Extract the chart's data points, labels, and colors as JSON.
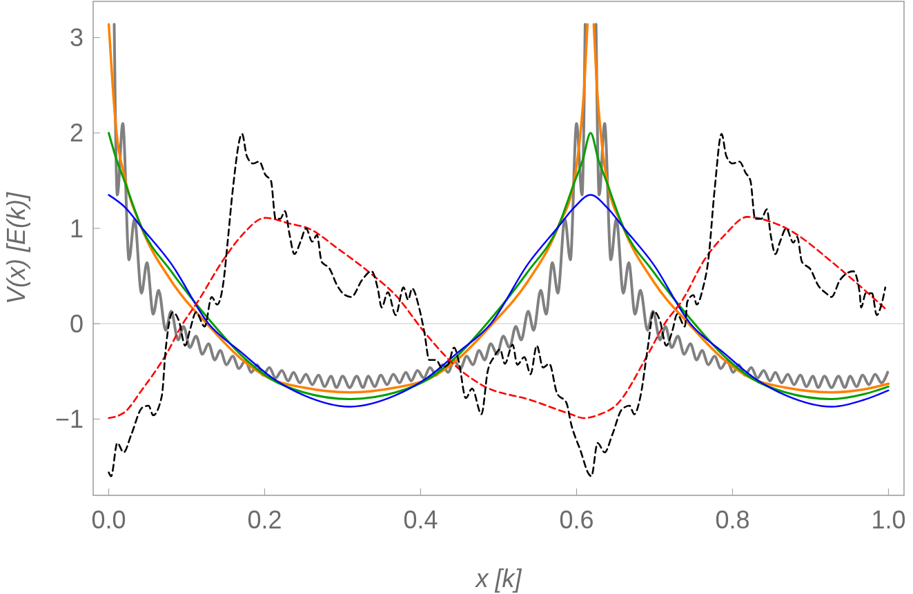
{
  "chart_data": {
    "type": "line",
    "xlabel": "x [k]",
    "ylabel": "V(x) [E(k)]",
    "xlim": [
      -0.02,
      1.02
    ],
    "ylim": [
      -1.8,
      3.38
    ],
    "xticks": [
      {
        "value": 0,
        "label": "0.0"
      },
      {
        "value": 0.2,
        "label": "0.2"
      },
      {
        "value": 0.4,
        "label": "0.4"
      },
      {
        "value": 0.6,
        "label": "0.6"
      },
      {
        "value": 0.8,
        "label": "0.8"
      },
      {
        "value": 1,
        "label": "1.0"
      }
    ],
    "yticks": [
      {
        "value": -1,
        "label": "−1"
      },
      0,
      1,
      2,
      3
    ],
    "grid": false,
    "ref_lines": [
      {
        "axis": "y",
        "value": 0,
        "color": "#d9d9d9"
      }
    ],
    "series": [
      {
        "color": "#808080",
        "x": [
          0.007,
          0.011,
          0.018,
          0.026,
          0.033,
          0.042,
          0.049,
          0.057,
          0.064,
          0.073,
          0.08,
          0.089,
          0.096,
          0.104,
          0.112,
          0.12,
          0.128,
          0.136,
          0.143,
          0.151,
          0.159,
          0.167,
          0.175,
          0.183,
          0.19,
          0.198,
          0.206,
          0.214,
          0.222,
          0.23,
          0.237,
          0.245,
          0.253,
          0.261,
          0.269,
          0.277,
          0.285,
          0.292,
          0.3,
          0.309,
          0.318,
          0.326,
          0.333,
          0.341,
          0.349,
          0.357,
          0.365,
          0.373,
          0.381,
          0.388,
          0.396,
          0.404,
          0.412,
          0.42,
          0.428,
          0.435,
          0.443,
          0.451,
          0.459,
          0.467,
          0.475,
          0.482,
          0.49,
          0.498,
          0.506,
          0.514,
          0.522,
          0.529,
          0.538,
          0.545,
          0.554,
          0.561,
          0.569,
          0.576,
          0.585,
          0.592,
          0.6,
          0.607,
          0.611,
          0.618,
          0.625,
          0.629,
          0.636,
          0.644,
          0.651,
          0.66,
          0.667,
          0.675,
          0.682,
          0.691,
          0.698,
          0.707,
          0.714,
          0.722,
          0.73,
          0.738,
          0.746,
          0.754,
          0.761,
          0.769,
          0.777,
          0.785,
          0.793,
          0.801,
          0.808,
          0.816,
          0.824,
          0.832,
          0.84,
          0.848,
          0.855,
          0.863,
          0.871,
          0.879,
          0.887,
          0.895,
          0.903,
          0.91,
          0.918,
          0.927,
          0.936,
          0.944,
          0.951,
          0.959,
          0.967,
          0.975,
          0.983,
          0.991,
          0.999
        ],
        "values": [
          3.14,
          1.35,
          2.1,
          0.67,
          1.1,
          0.32,
          0.64,
          0.1,
          0.35,
          -0.07,
          0.13,
          -0.17,
          -0.03,
          -0.25,
          -0.13,
          -0.32,
          -0.21,
          -0.38,
          -0.28,
          -0.43,
          -0.34,
          -0.47,
          -0.39,
          -0.51,
          -0.43,
          -0.54,
          -0.46,
          -0.57,
          -0.49,
          -0.6,
          -0.51,
          -0.62,
          -0.53,
          -0.64,
          -0.54,
          -0.66,
          -0.55,
          -0.67,
          -0.55,
          -0.67,
          -0.55,
          -0.67,
          -0.55,
          -0.66,
          -0.54,
          -0.64,
          -0.53,
          -0.62,
          -0.51,
          -0.6,
          -0.49,
          -0.57,
          -0.46,
          -0.54,
          -0.43,
          -0.51,
          -0.39,
          -0.47,
          -0.34,
          -0.43,
          -0.28,
          -0.38,
          -0.21,
          -0.32,
          -0.13,
          -0.25,
          -0.03,
          -0.17,
          0.13,
          -0.07,
          0.35,
          0.1,
          0.64,
          0.32,
          1.1,
          0.67,
          2.1,
          1.35,
          3.14,
          null,
          3.14,
          1.35,
          2.1,
          0.67,
          1.1,
          0.32,
          0.64,
          0.1,
          0.35,
          -0.07,
          0.13,
          -0.17,
          -0.03,
          -0.25,
          -0.13,
          -0.32,
          -0.21,
          -0.38,
          -0.28,
          -0.43,
          -0.34,
          -0.47,
          -0.39,
          -0.51,
          -0.43,
          -0.54,
          -0.46,
          -0.57,
          -0.49,
          -0.6,
          -0.51,
          -0.62,
          -0.53,
          -0.64,
          -0.54,
          -0.66,
          -0.55,
          -0.67,
          -0.55,
          -0.67,
          -0.55,
          -0.67,
          -0.55,
          -0.66,
          -0.54,
          -0.64,
          -0.53,
          -0.62,
          -0.51
        ]
      },
      {
        "color": "#ff8000",
        "x": [
          0,
          0.005,
          0.01,
          0.02,
          0.042,
          0.08,
          0.128,
          0.17,
          0.208,
          0.25,
          0.309,
          0.368,
          0.41,
          0.448,
          0.49,
          0.538,
          0.576,
          0.598,
          0.605,
          0.61,
          0.614,
          0.618,
          0.622,
          0.626,
          0.631,
          0.638,
          0.66,
          0.698,
          0.746,
          0.788,
          0.826,
          0.868,
          0.927,
          0.968,
          1.0
        ],
        "values": [
          3.14,
          2.5,
          2.0,
          1.55,
          1.01,
          0.45,
          -0.02,
          -0.37,
          -0.58,
          -0.67,
          -0.72,
          -0.67,
          -0.58,
          -0.37,
          -0.02,
          0.45,
          1.01,
          1.55,
          2.0,
          2.5,
          3.14,
          null,
          3.14,
          2.5,
          2.0,
          1.55,
          1.01,
          0.45,
          -0.02,
          -0.37,
          -0.58,
          -0.67,
          -0.72,
          -0.69,
          -0.63
        ]
      },
      {
        "color": "#00a000",
        "x": [
          0,
          0.01,
          0.02,
          0.042,
          0.08,
          0.128,
          0.17,
          0.208,
          0.25,
          0.309,
          0.368,
          0.41,
          0.448,
          0.49,
          0.538,
          0.576,
          0.598,
          0.608,
          0.618,
          0.628,
          0.638,
          0.66,
          0.698,
          0.746,
          0.788,
          0.826,
          0.868,
          0.927,
          0.968,
          1.0
        ],
        "values": [
          2.0,
          1.72,
          1.5,
          1.01,
          0.55,
          0.05,
          -0.33,
          -0.58,
          -0.72,
          -0.79,
          -0.72,
          -0.58,
          -0.33,
          0.05,
          0.55,
          1.01,
          1.5,
          1.72,
          2.0,
          1.72,
          1.5,
          1.01,
          0.55,
          0.05,
          -0.33,
          -0.58,
          -0.72,
          -0.79,
          -0.74,
          -0.66
        ]
      },
      {
        "color": "#0000ff",
        "x": [
          0,
          0.021,
          0.042,
          0.08,
          0.128,
          0.17,
          0.21,
          0.25,
          0.309,
          0.368,
          0.408,
          0.448,
          0.49,
          0.538,
          0.576,
          0.597,
          0.618,
          0.639,
          0.66,
          0.698,
          0.746,
          0.788,
          0.828,
          0.868,
          0.927,
          0.968,
          1.0
        ],
        "values": [
          1.35,
          1.22,
          1.01,
          0.63,
          0,
          -0.3,
          -0.57,
          -0.75,
          -0.87,
          -0.75,
          -0.57,
          -0.3,
          0,
          0.63,
          1.01,
          1.22,
          1.35,
          1.22,
          1.01,
          0.63,
          0,
          -0.3,
          -0.57,
          -0.75,
          -0.87,
          -0.8,
          -0.7
        ]
      },
      {
        "color": "#ff0000",
        "line_style": "dashed",
        "x": [
          0,
          0.02,
          0.042,
          0.073,
          0.095,
          0.114,
          0.147,
          0.17,
          0.201,
          0.232,
          0.256,
          0.295,
          0.334,
          0.37,
          0.403,
          0.443,
          0.48,
          0.541,
          0.593,
          0.609,
          0.63,
          0.65,
          0.691,
          0.713,
          0.736,
          0.764,
          0.79,
          0.819,
          0.845,
          0.869,
          0.93,
          0.96,
          0.997
        ],
        "values": [
          -0.99,
          -0.93,
          -0.7,
          -0.33,
          0,
          0.23,
          0.67,
          0.92,
          1.11,
          1.05,
          1.0,
          0.78,
          0.54,
          0.28,
          -0.07,
          -0.43,
          -0.65,
          -0.8,
          -0.95,
          -0.99,
          -0.95,
          -0.86,
          -0.33,
          0,
          0.25,
          0.67,
          0.93,
          1.12,
          1.08,
          1.0,
          0.63,
          0.42,
          0.15
        ]
      },
      {
        "color": "#000000",
        "line_style": "dashed",
        "x": [
          0,
          0.003,
          0.011,
          0.019,
          0.029,
          0.043,
          0.051,
          0.057,
          0.068,
          0.073,
          0.082,
          0.09,
          0.098,
          0.104,
          0.112,
          0.123,
          0.132,
          0.139,
          0.147,
          0.153,
          0.159,
          0.171,
          0.177,
          0.185,
          0.193,
          0.201,
          0.208,
          0.214,
          0.22,
          0.226,
          0.232,
          0.238,
          0.246,
          0.253,
          0.261,
          0.267,
          0.273,
          0.283,
          0.293,
          0.303,
          0.311,
          0.325,
          0.337,
          0.345,
          0.35,
          0.358,
          0.368,
          0.378,
          0.384,
          0.389,
          0.398,
          0.405,
          0.411,
          0.42,
          0.427,
          0.435,
          0.443,
          0.449,
          0.458,
          0.466,
          0.478,
          0.486,
          0.494,
          0.502,
          0.508,
          0.518,
          0.524,
          0.533,
          0.541,
          0.549,
          0.557,
          0.565,
          0.575,
          0.587,
          0.593,
          0.605,
          0.616,
          0.619,
          0.627,
          0.636,
          0.646,
          0.658,
          0.668,
          0.674,
          0.682,
          0.691,
          0.699,
          0.707,
          0.715,
          0.723,
          0.729,
          0.739,
          0.742,
          0.75,
          0.754,
          0.762,
          0.769,
          0.777,
          0.786,
          0.792,
          0.8,
          0.809,
          0.817,
          0.823,
          0.829,
          0.837,
          0.844,
          0.849,
          0.855,
          0.861,
          0.869,
          0.878,
          0.883,
          0.889,
          0.9,
          0.91,
          0.92,
          0.927,
          0.938,
          0.955,
          0.963,
          0.965,
          0.971,
          0.979,
          0.985,
          0.991,
          0.996
        ],
        "values": [
          -1.56,
          -1.6,
          -1.25,
          -1.35,
          -1.16,
          -0.88,
          -0.86,
          -0.96,
          -0.76,
          -0.27,
          0.12,
          0.03,
          -0.23,
          -0.07,
          0.12,
          -0.03,
          0.28,
          0.2,
          0.43,
          0.9,
          1.4,
          1.99,
          1.76,
          1.68,
          1.7,
          1.56,
          1.5,
          1.1,
          1.1,
          1.18,
          0.93,
          0.73,
          0.86,
          1.0,
          0.86,
          0.93,
          0.65,
          0.58,
          0.4,
          0.3,
          0.28,
          0.46,
          0.55,
          0.37,
          0.17,
          0.33,
          0.09,
          0.38,
          0.25,
          0.37,
          0.17,
          -0.1,
          -0.38,
          -0.38,
          -0.46,
          -0.43,
          -0.25,
          -0.4,
          -0.78,
          -0.68,
          -0.95,
          -0.5,
          -0.35,
          -0.27,
          -0.42,
          -0.22,
          -0.43,
          -0.35,
          -0.53,
          -0.23,
          -0.46,
          -0.42,
          -0.73,
          -0.83,
          -1.05,
          -1.33,
          -1.58,
          -1.6,
          -1.25,
          -1.35,
          -1.16,
          -0.9,
          -0.86,
          -0.95,
          -0.76,
          -0.27,
          0.13,
          0.03,
          -0.23,
          -0.07,
          0.1,
          -0.03,
          0.23,
          0.3,
          0.2,
          0.37,
          0.67,
          1.4,
          1.99,
          1.76,
          1.68,
          1.7,
          1.58,
          1.5,
          1.1,
          1.1,
          1.2,
          0.93,
          0.73,
          0.86,
          1.0,
          0.85,
          0.91,
          0.65,
          0.57,
          0.4,
          0.32,
          0.28,
          0.46,
          0.55,
          0.33,
          0.17,
          0.32,
          0.32,
          0.09,
          0.2,
          0.38
        ]
      }
    ]
  }
}
